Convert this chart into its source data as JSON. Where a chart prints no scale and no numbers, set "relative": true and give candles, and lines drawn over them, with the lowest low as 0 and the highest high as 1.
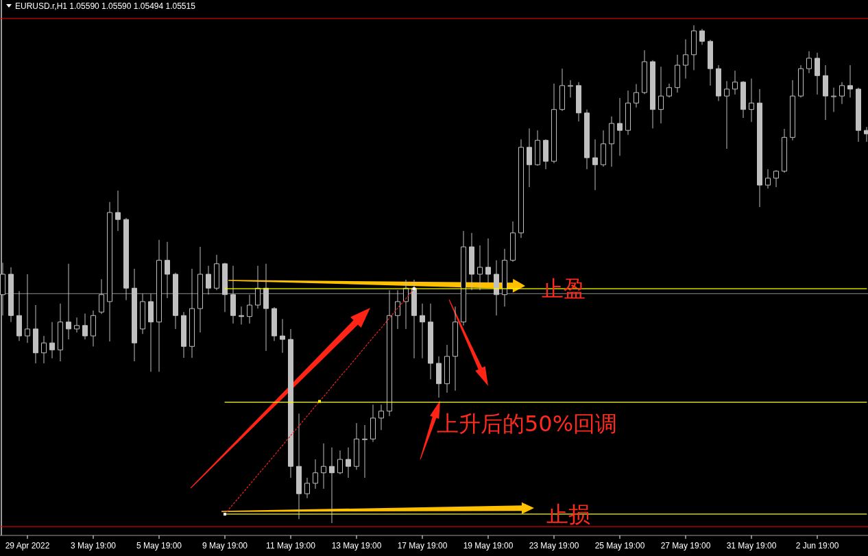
{
  "chart_data": {
    "type": "candlestick",
    "title": "EURUSD.r,H1 1.05590 1.05590 1.05494 1.05515",
    "relative": true,
    "tick_labels": "x",
    "color": "#c0c0c0",
    "categories": [
      null,
      null,
      null,
      "29 Apr 2022",
      null,
      null,
      null,
      null,
      null,
      null,
      null,
      "3 May 19:00",
      null,
      null,
      null,
      null,
      null,
      null,
      null,
      "5 May 19:00",
      null,
      null,
      null,
      null,
      null,
      null,
      null,
      "9 May 19:00",
      null,
      null,
      null,
      null,
      null,
      null,
      null,
      "11 May 19:00",
      null,
      null,
      null,
      null,
      null,
      null,
      null,
      "13 May 19:00",
      null,
      null,
      null,
      null,
      null,
      null,
      null,
      "17 May 19:00",
      null,
      null,
      null,
      null,
      null,
      null,
      null,
      "19 May 19:00",
      null,
      null,
      null,
      null,
      null,
      null,
      null,
      "23 May 19:00",
      null,
      null,
      null,
      null,
      null,
      null,
      null,
      "25 May 19:00",
      null,
      null,
      null,
      null,
      null,
      null,
      null,
      "27 May 19:00",
      null,
      null,
      null,
      null,
      null,
      null,
      null,
      "31 May 19:00",
      null,
      null,
      null,
      null,
      null,
      null,
      null,
      "2 Jun 19:00",
      null,
      null,
      null,
      null,
      null,
      null
    ],
    "ohlc": [
      [
        0.459,
        0.523,
        0.417,
        0.5
      ],
      [
        0.5,
        0.514,
        0.404,
        0.417
      ],
      [
        0.417,
        0.466,
        0.366,
        0.376
      ],
      [
        0.376,
        0.5,
        0.362,
        0.39
      ],
      [
        0.39,
        0.438,
        0.321,
        0.342
      ],
      [
        0.342,
        0.376,
        0.321,
        0.362
      ],
      [
        0.362,
        0.404,
        0.331,
        0.348
      ],
      [
        0.348,
        0.441,
        0.325,
        0.404
      ],
      [
        0.404,
        0.521,
        0.369,
        0.39
      ],
      [
        0.39,
        0.413,
        0.383,
        0.397
      ],
      [
        0.397,
        0.421,
        0.369,
        0.376
      ],
      [
        0.376,
        0.427,
        0.355,
        0.417
      ],
      [
        0.424,
        0.49,
        0.42,
        0.459
      ],
      [
        0.445,
        0.645,
        0.365,
        0.624
      ],
      [
        0.624,
        0.668,
        0.587,
        0.61
      ],
      [
        0.61,
        0.613,
        0.448,
        0.472
      ],
      [
        0.472,
        0.511,
        0.325,
        0.362
      ],
      [
        0.39,
        0.461,
        0.38,
        0.445
      ],
      [
        0.445,
        0.461,
        0.304,
        0.404
      ],
      [
        0.404,
        0.569,
        0.304,
        0.528
      ],
      [
        0.528,
        0.565,
        0.452,
        0.5
      ],
      [
        0.5,
        0.503,
        0.39,
        0.417
      ],
      [
        0.417,
        0.424,
        0.332,
        0.355
      ],
      [
        0.355,
        0.511,
        0.332,
        0.431
      ],
      [
        0.431,
        0.555,
        0.383,
        0.5
      ],
      [
        0.5,
        0.517,
        0.459,
        0.472
      ],
      [
        0.472,
        0.539,
        0.468,
        0.521
      ],
      [
        0.521,
        0.523,
        0.424,
        0.459
      ],
      [
        0.459,
        0.517,
        0.401,
        0.417
      ],
      [
        0.417,
        0.435,
        0.399,
        0.415
      ],
      [
        0.415,
        0.459,
        0.401,
        0.438
      ],
      [
        0.438,
        0.517,
        0.431,
        0.472
      ],
      [
        0.472,
        0.521,
        0.346,
        0.431
      ],
      [
        0.431,
        0.434,
        0.366,
        0.376
      ],
      [
        0.376,
        0.41,
        0.342,
        0.369
      ],
      [
        0.369,
        0.39,
        0.091,
        0.114
      ],
      [
        0.114,
        0.22,
        0.008,
        0.059
      ],
      [
        0.059,
        0.091,
        0.05,
        0.08
      ],
      [
        0.08,
        0.128,
        0.069,
        0.101
      ],
      [
        0.101,
        0.16,
        0.069,
        0.114
      ],
      [
        0.114,
        0.152,
        0,
        0.101
      ],
      [
        0.101,
        0.146,
        0.098,
        0.128
      ],
      [
        0.128,
        0.152,
        0.091,
        0.114
      ],
      [
        0.114,
        0.201,
        0.107,
        0.169
      ],
      [
        0.169,
        0.197,
        0.091,
        0.169
      ],
      [
        0.169,
        0.238,
        0.163,
        0.211
      ],
      [
        0.211,
        0.238,
        0.187,
        0.225
      ],
      [
        0.225,
        0.468,
        0.215,
        0.417
      ],
      [
        0.417,
        0.468,
        0.39,
        0.445
      ],
      [
        0.445,
        0.489,
        0.39,
        0.472
      ],
      [
        0.472,
        0.489,
        0.331,
        0.417
      ],
      [
        0.417,
        0.441,
        0.331,
        0.404
      ],
      [
        0.404,
        0.441,
        0.289,
        0.321
      ],
      [
        0.321,
        0.335,
        0.252,
        0.28
      ],
      [
        0.28,
        0.358,
        0.262,
        0.335
      ],
      [
        0.335,
        0.435,
        0.266,
        0.404
      ],
      [
        0.404,
        0.587,
        0.397,
        0.555
      ],
      [
        0.555,
        0.583,
        0.468,
        0.5
      ],
      [
        0.5,
        0.558,
        0.468,
        0.514
      ],
      [
        0.514,
        0.572,
        0.482,
        0.5
      ],
      [
        0.5,
        0.528,
        0.417,
        0.459
      ],
      [
        0.459,
        0.551,
        0.435,
        0.528
      ],
      [
        0.528,
        0.606,
        0.525,
        0.583
      ],
      [
        0.583,
        0.771,
        0.573,
        0.755
      ],
      [
        0.755,
        0.793,
        0.675,
        0.72
      ],
      [
        0.72,
        0.789,
        0.718,
        0.769
      ],
      [
        0.769,
        0.771,
        0.711,
        0.727
      ],
      [
        0.727,
        0.883,
        0.723,
        0.831
      ],
      [
        0.831,
        0.913,
        0.828,
        0.879
      ],
      [
        0.879,
        0.89,
        0.855,
        0.879
      ],
      [
        0.879,
        0.886,
        0.807,
        0.824
      ],
      [
        0.824,
        0.831,
        0.711,
        0.734
      ],
      [
        0.734,
        0.771,
        0.669,
        0.72
      ],
      [
        0.72,
        0.789,
        0.716,
        0.762
      ],
      [
        0.762,
        0.817,
        0.716,
        0.803
      ],
      [
        0.803,
        0.854,
        0.738,
        0.789
      ],
      [
        0.789,
        0.869,
        0.78,
        0.844
      ],
      [
        0.844,
        0.882,
        0.835,
        0.865
      ],
      [
        0.865,
        0.95,
        0.862,
        0.927
      ],
      [
        0.927,
        0.93,
        0.793,
        0.831
      ],
      [
        0.831,
        0.917,
        0.803,
        0.858
      ],
      [
        0.858,
        0.883,
        0.855,
        0.875
      ],
      [
        0.875,
        0.941,
        0.865,
        0.92
      ],
      [
        0.92,
        0.972,
        0.893,
        0.941
      ],
      [
        0.941,
        1,
        0.91,
        0.989
      ],
      [
        0.989,
        0.993,
        0.961,
        0.968
      ],
      [
        0.968,
        0.971,
        0.879,
        0.913
      ],
      [
        0.913,
        0.92,
        0.848,
        0.858
      ],
      [
        0.858,
        0.888,
        0.752,
        0.872
      ],
      [
        0.872,
        0.909,
        0.861,
        0.886
      ],
      [
        0.886,
        0.888,
        0.814,
        0.831
      ],
      [
        0.831,
        0.893,
        0.806,
        0.844
      ],
      [
        0.844,
        0.872,
        0.635,
        0.679
      ],
      [
        0.679,
        0.711,
        0.672,
        0.693
      ],
      [
        0.693,
        0.709,
        0.675,
        0.707
      ],
      [
        0.707,
        0.792,
        0.704,
        0.775
      ],
      [
        0.775,
        0.89,
        0.769,
        0.858
      ],
      [
        0.858,
        0.92,
        0.855,
        0.913
      ],
      [
        0.913,
        0.948,
        0.904,
        0.934
      ],
      [
        0.934,
        0.945,
        0.861,
        0.899
      ],
      [
        0.899,
        0.92,
        0.81,
        0.858
      ],
      [
        0.858,
        0.875,
        0.826,
        0.858
      ],
      [
        0.858,
        0.886,
        0.842,
        0.879
      ],
      [
        0.879,
        0.92,
        0.855,
        0.872
      ],
      [
        0.872,
        0.875,
        0.766,
        0.789
      ],
      [
        0.789,
        0.796,
        0.766,
        0.782
      ]
    ],
    "series": [
      {
        "type": "line",
        "color": "#ffff00",
        "values": [
          null,
          null,
          null,
          null,
          null,
          null,
          null,
          null,
          null,
          null,
          null,
          null,
          null,
          null,
          null,
          null,
          null,
          null,
          null,
          null,
          null,
          null,
          null,
          null,
          null,
          null,
          null,
          0.471,
          0.471,
          0.471,
          0.471,
          0.471,
          0.471,
          0.471,
          0.471,
          0.471,
          0.471,
          0.471,
          0.471,
          0.471,
          0.471,
          0.471,
          0.471,
          0.471,
          0.471,
          0.471,
          0.471,
          0.471,
          0.471,
          0.471,
          0.471,
          0.471,
          0.471,
          0.471,
          0.471,
          0.471,
          0.471,
          0.471,
          0.471,
          0.471,
          0.471,
          0.471,
          0.471,
          0.471,
          0.471,
          0.471,
          0.471,
          0.471,
          0.471,
          0.471,
          0.471,
          0.471,
          0.471,
          0.471,
          0.471,
          0.471,
          0.471,
          0.471,
          0.471,
          0.471,
          0.471,
          0.471,
          0.471,
          0.471,
          0.471,
          0.471,
          0.471,
          0.471,
          0.471,
          0.471,
          0.471,
          0.471,
          0.471,
          0.471,
          0.471,
          0.471,
          0.471,
          0.471,
          0.471,
          0.471,
          0.471,
          0.471,
          0.471,
          0.471,
          0.471,
          0.471
        ]
      },
      {
        "type": "line",
        "color": "#ffff00",
        "values": [
          null,
          null,
          null,
          null,
          null,
          null,
          null,
          null,
          null,
          null,
          null,
          null,
          null,
          null,
          null,
          null,
          null,
          null,
          null,
          null,
          null,
          null,
          null,
          null,
          null,
          null,
          null,
          0.243,
          0.243,
          0.243,
          0.243,
          0.243,
          0.243,
          0.243,
          0.243,
          0.243,
          0.243,
          0.243,
          0.243,
          0.243,
          0.243,
          0.243,
          0.243,
          0.243,
          0.243,
          0.243,
          0.243,
          0.243,
          0.243,
          0.243,
          0.243,
          0.243,
          0.243,
          0.243,
          0.243,
          0.243,
          0.243,
          0.243,
          0.243,
          0.243,
          0.243,
          0.243,
          0.243,
          0.243,
          0.243,
          0.243,
          0.243,
          0.243,
          0.243,
          0.243,
          0.243,
          0.243,
          0.243,
          0.243,
          0.243,
          0.243,
          0.243,
          0.243,
          0.243,
          0.243,
          0.243,
          0.243,
          0.243,
          0.243,
          0.243,
          0.243,
          0.243,
          0.243,
          0.243,
          0.243,
          0.243,
          0.243,
          0.243,
          0.243,
          0.243,
          0.243,
          0.243,
          0.243,
          0.243,
          0.243,
          0.243,
          0.243,
          0.243,
          0.243,
          0.243,
          0.243
        ]
      },
      {
        "type": "line",
        "color": "#ffff00",
        "values": [
          null,
          null,
          null,
          null,
          null,
          null,
          null,
          null,
          null,
          null,
          null,
          null,
          null,
          null,
          null,
          null,
          null,
          null,
          null,
          null,
          null,
          null,
          null,
          null,
          null,
          null,
          null,
          0.018,
          0.018,
          0.018,
          0.018,
          0.018,
          0.018,
          0.018,
          0.018,
          0.018,
          0.018,
          0.018,
          0.018,
          0.018,
          0.018,
          0.018,
          0.018,
          0.018,
          0.018,
          0.018,
          0.018,
          0.018,
          0.018,
          0.018,
          0.018,
          0.018,
          0.018,
          0.018,
          0.018,
          0.018,
          0.018,
          0.018,
          0.018,
          0.018,
          0.018,
          0.018,
          0.018,
          0.018,
          0.018,
          0.018,
          0.018,
          0.018,
          0.018,
          0.018,
          0.018,
          0.018,
          0.018,
          0.018,
          0.018,
          0.018,
          0.018,
          0.018,
          0.018,
          0.018,
          0.018,
          0.018,
          0.018,
          0.018,
          0.018,
          0.018,
          0.018,
          0.018,
          0.018,
          0.018,
          0.018,
          0.018,
          0.018,
          0.018,
          0.018,
          0.018,
          0.018,
          0.018,
          0.018,
          0.018,
          0.018,
          0.018,
          0.018,
          0.018,
          0.018,
          0.018
        ]
      },
      {
        "type": "line",
        "color": "#ff2020",
        "line_style": "dotted",
        "values": [
          null,
          null,
          null,
          null,
          null,
          null,
          null,
          null,
          null,
          null,
          null,
          null,
          null,
          null,
          null,
          null,
          null,
          null,
          null,
          null,
          null,
          null,
          null,
          null,
          null,
          null,
          null,
          0.018,
          0.038,
          0.057,
          0.077,
          0.097,
          0.116,
          0.136,
          0.156,
          0.176,
          0.195,
          0.215,
          0.235,
          0.254,
          0.274,
          0.294,
          0.313,
          0.333,
          0.353,
          0.373,
          0.392,
          0.412,
          0.432,
          0.451,
          0.471,
          null,
          null,
          null,
          null,
          null,
          null,
          null,
          null,
          null,
          null,
          null,
          null,
          null,
          null,
          null,
          null,
          null,
          null,
          null,
          null,
          null,
          null,
          null,
          null,
          null,
          null,
          null,
          null,
          null,
          null,
          null,
          null,
          null,
          null,
          null,
          null,
          null,
          null,
          null,
          null,
          null,
          null,
          null,
          null,
          null,
          null,
          null,
          null,
          null,
          null,
          null,
          null,
          null,
          null,
          null
        ]
      }
    ],
    "ref_lines": [
      {
        "axis": "y",
        "value": 1.014,
        "color": "#ff0000"
      },
      {
        "axis": "y",
        "value": 0.461,
        "color": "#8c8c8c"
      },
      {
        "axis": "y",
        "value": -0.007,
        "color": "#ff0000"
      }
    ],
    "annotations": [
      {
        "text": "止盈",
        "y": 0.471
      },
      {
        "text": "上升后的50%回调",
        "y": 0.243
      },
      {
        "text": "止损",
        "y": 0.018
      }
    ]
  }
}
